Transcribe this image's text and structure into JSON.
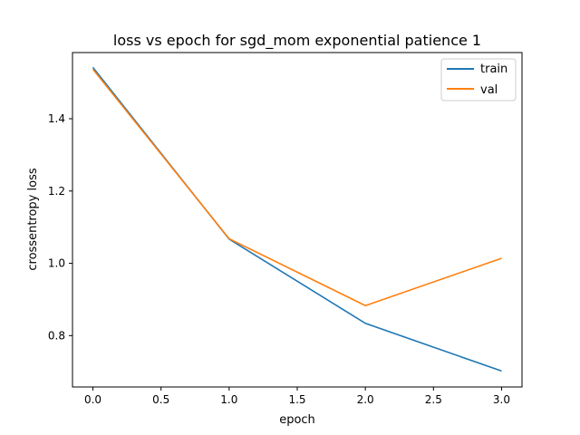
{
  "chart_data": {
    "type": "line",
    "title": "loss vs epoch for sgd_mom exponential patience 1",
    "xlabel": "epoch",
    "ylabel": "crossentropy loss",
    "xlim": [
      -0.15,
      3.15
    ],
    "ylim": [
      0.658,
      1.583
    ],
    "x_ticks": [
      0.0,
      0.5,
      1.0,
      1.5,
      2.0,
      2.5,
      3.0
    ],
    "x_tick_labels": [
      "0.0",
      "0.5",
      "1.0",
      "1.5",
      "2.0",
      "2.5",
      "3.0"
    ],
    "y_ticks": [
      0.8,
      1.0,
      1.2,
      1.4
    ],
    "y_tick_labels": [
      "0.8",
      "1.0",
      "1.2",
      "1.4"
    ],
    "grid": false,
    "legend_position": "top-right",
    "x": [
      0,
      1,
      2,
      3
    ],
    "series": [
      {
        "name": "train",
        "color": "#1f77b4",
        "values": [
          1.542,
          1.067,
          0.834,
          0.702
        ]
      },
      {
        "name": "val",
        "color": "#ff7f0e",
        "values": [
          1.537,
          1.068,
          0.883,
          1.014
        ]
      }
    ]
  }
}
